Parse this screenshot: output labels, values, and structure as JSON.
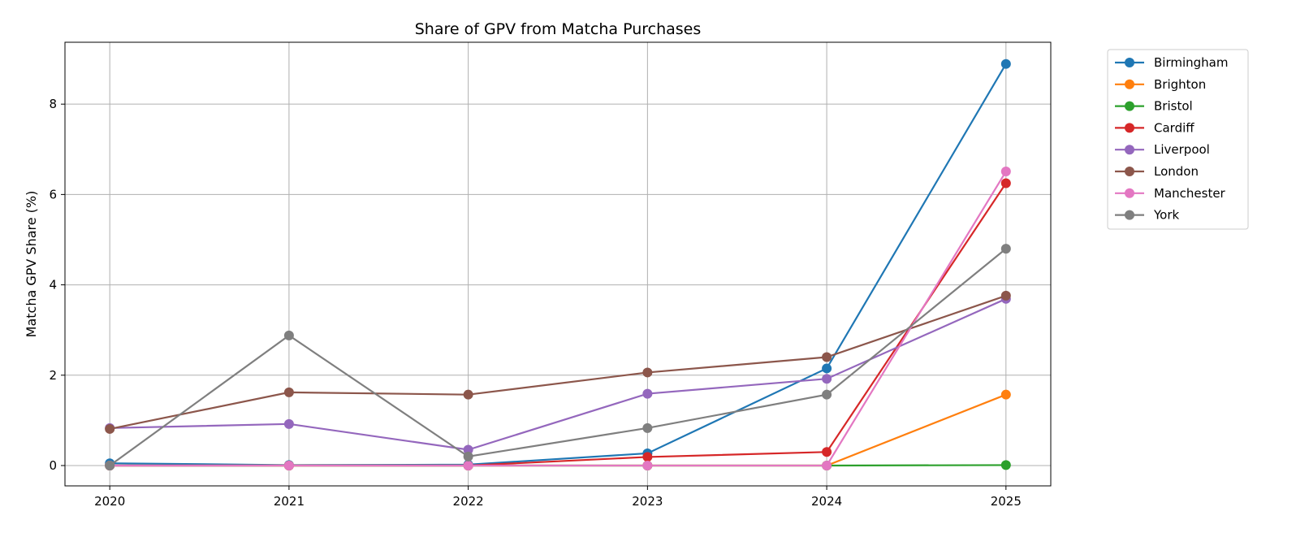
{
  "chart_data": {
    "type": "line",
    "title": "Share of GPV from Matcha Purchases",
    "xlabel": "",
    "ylabel": "Matcha GPV Share (%)",
    "x": [
      2020,
      2021,
      2022,
      2023,
      2024,
      2025
    ],
    "xlim": [
      2019.75,
      2025.25
    ],
    "ylim": [
      -0.45,
      9.37
    ],
    "yticks": [
      0,
      2,
      4,
      6,
      8
    ],
    "grid": true,
    "legend_placement": "outside-top-right",
    "series": [
      {
        "name": "Birmingham",
        "color": "#1f77b4",
        "values": [
          0.05,
          0.01,
          0.02,
          0.27,
          2.15,
          8.89
        ]
      },
      {
        "name": "Brighton",
        "color": "#ff7f0e",
        "values": [
          0,
          0,
          0,
          0,
          0,
          1.57
        ]
      },
      {
        "name": "Bristol",
        "color": "#2ca02c",
        "values": [
          0,
          0,
          0,
          0,
          0,
          0.01
        ]
      },
      {
        "name": "Cardiff",
        "color": "#d62728",
        "values": [
          0,
          0,
          0,
          0.19,
          0.3,
          6.25
        ]
      },
      {
        "name": "Liverpool",
        "color": "#9467bd",
        "values": [
          0.83,
          0.92,
          0.35,
          1.59,
          1.92,
          3.69
        ]
      },
      {
        "name": "London",
        "color": "#8c564b",
        "values": [
          0.81,
          1.62,
          1.57,
          2.06,
          2.4,
          3.76
        ]
      },
      {
        "name": "Manchester",
        "color": "#e377c2",
        "values": [
          0,
          0,
          0,
          0,
          0,
          6.51
        ]
      },
      {
        "name": "York",
        "color": "#7f7f7f",
        "values": [
          0,
          2.88,
          0.2,
          0.83,
          1.57,
          4.8
        ]
      }
    ]
  }
}
